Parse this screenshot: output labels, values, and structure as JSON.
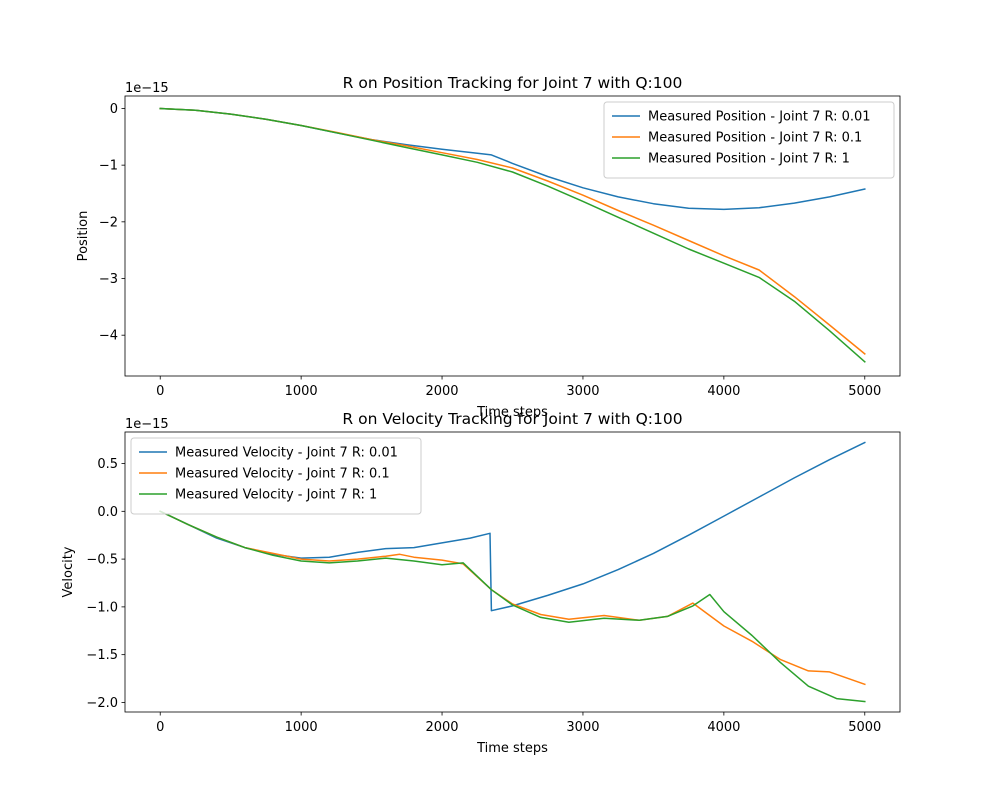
{
  "colors": {
    "blue": "#1f77b4",
    "orange": "#ff7f0e",
    "green": "#2ca02c"
  },
  "chart_data": [
    {
      "type": "line",
      "title": "R on Position Tracking for Joint 7 with Q:100",
      "xlabel": "Time steps",
      "ylabel": "Position",
      "offset_text": "1e−15",
      "scale": 1e-15,
      "xlim": [
        -250,
        5250
      ],
      "ylim": [
        -4.72,
        0.22
      ],
      "xticks": [
        0,
        1000,
        2000,
        3000,
        4000,
        5000
      ],
      "xtick_labels": [
        "0",
        "1000",
        "2000",
        "3000",
        "4000",
        "5000"
      ],
      "yticks": [
        0,
        -1,
        -2,
        -3,
        -4
      ],
      "ytick_labels": [
        "0",
        "−1",
        "−2",
        "−3",
        "−4"
      ],
      "legend": "top-right",
      "grid": false,
      "series": [
        {
          "name": "Measured Position - Joint 7 R: 0.01",
          "color": "#1f77b4",
          "x": [
            0,
            250,
            500,
            750,
            1000,
            1250,
            1500,
            1750,
            2000,
            2250,
            2350,
            2500,
            2750,
            3000,
            3250,
            3500,
            3750,
            4000,
            4250,
            4500,
            4750,
            5000
          ],
          "y": [
            0,
            -0.03,
            -0.1,
            -0.19,
            -0.3,
            -0.43,
            -0.55,
            -0.64,
            -0.72,
            -0.79,
            -0.82,
            -0.97,
            -1.2,
            -1.4,
            -1.56,
            -1.68,
            -1.76,
            -1.78,
            -1.75,
            -1.67,
            -1.56,
            -1.42
          ]
        },
        {
          "name": "Measured Position - Joint 7 R: 0.1",
          "color": "#ff7f0e",
          "x": [
            0,
            250,
            500,
            750,
            1000,
            1250,
            1500,
            1750,
            2000,
            2250,
            2500,
            2750,
            3000,
            3250,
            3500,
            3750,
            4000,
            4250,
            4500,
            4750,
            5000
          ],
          "y": [
            0,
            -0.03,
            -0.1,
            -0.19,
            -0.3,
            -0.42,
            -0.55,
            -0.66,
            -0.78,
            -0.9,
            -1.05,
            -1.28,
            -1.53,
            -1.8,
            -2.06,
            -2.33,
            -2.6,
            -2.85,
            -3.32,
            -3.82,
            -4.33
          ]
        },
        {
          "name": "Measured Position - Joint 7 R: 1",
          "color": "#2ca02c",
          "x": [
            0,
            250,
            500,
            750,
            1000,
            1250,
            1500,
            1750,
            2000,
            2250,
            2500,
            2750,
            3000,
            3250,
            3500,
            3750,
            4000,
            4250,
            4500,
            4750,
            5000
          ],
          "y": [
            0,
            -0.03,
            -0.1,
            -0.19,
            -0.3,
            -0.43,
            -0.56,
            -0.69,
            -0.82,
            -0.95,
            -1.12,
            -1.37,
            -1.64,
            -1.92,
            -2.2,
            -2.48,
            -2.73,
            -2.98,
            -3.4,
            -3.92,
            -4.47
          ]
        }
      ]
    },
    {
      "type": "line",
      "title": "R on Velocity Tracking for Joint 7 with Q:100",
      "xlabel": "Time steps",
      "ylabel": "Velocity",
      "offset_text": "1e−15",
      "scale": 1e-15,
      "xlim": [
        -250,
        5250
      ],
      "ylim": [
        -2.1,
        0.83
      ],
      "xticks": [
        0,
        1000,
        2000,
        3000,
        4000,
        5000
      ],
      "xtick_labels": [
        "0",
        "1000",
        "2000",
        "3000",
        "4000",
        "5000"
      ],
      "yticks": [
        0.5,
        0.0,
        -0.5,
        -1.0,
        -1.5,
        -2.0
      ],
      "ytick_labels": [
        "0.5",
        "0.0",
        "−0.5",
        "−1.0",
        "−1.5",
        "−2.0"
      ],
      "legend": "top-left",
      "grid": false,
      "series": [
        {
          "name": "Measured Velocity - Joint 7 R: 0.01",
          "color": "#1f77b4",
          "x": [
            0,
            200,
            400,
            600,
            800,
            1000,
            1200,
            1400,
            1600,
            1800,
            2000,
            2200,
            2340,
            2350,
            2500,
            2750,
            3000,
            3250,
            3500,
            3750,
            4000,
            4250,
            4500,
            4750,
            5000
          ],
          "y": [
            0,
            -0.14,
            -0.28,
            -0.38,
            -0.45,
            -0.49,
            -0.48,
            -0.43,
            -0.39,
            -0.38,
            -0.33,
            -0.28,
            -0.23,
            -1.04,
            -0.99,
            -0.88,
            -0.76,
            -0.61,
            -0.44,
            -0.25,
            -0.05,
            0.15,
            0.35,
            0.54,
            0.72
          ]
        },
        {
          "name": "Measured Velocity - Joint 7 R: 0.1",
          "color": "#ff7f0e",
          "x": [
            0,
            200,
            400,
            600,
            800,
            1000,
            1200,
            1400,
            1600,
            1700,
            1800,
            2000,
            2150,
            2350,
            2500,
            2700,
            2900,
            3150,
            3400,
            3600,
            3780,
            4000,
            4200,
            4400,
            4600,
            4750,
            5000
          ],
          "y": [
            0,
            -0.14,
            -0.27,
            -0.38,
            -0.44,
            -0.5,
            -0.52,
            -0.5,
            -0.47,
            -0.45,
            -0.48,
            -0.51,
            -0.55,
            -0.82,
            -0.97,
            -1.08,
            -1.13,
            -1.09,
            -1.14,
            -1.1,
            -0.96,
            -1.2,
            -1.36,
            -1.55,
            -1.67,
            -1.68,
            -1.81
          ]
        },
        {
          "name": "Measured Velocity - Joint 7 R: 1",
          "color": "#2ca02c",
          "x": [
            0,
            200,
            400,
            600,
            800,
            1000,
            1200,
            1400,
            1600,
            1800,
            2000,
            2150,
            2350,
            2500,
            2700,
            2900,
            3150,
            3400,
            3600,
            3780,
            3900,
            4000,
            4200,
            4400,
            4600,
            4800,
            5000
          ],
          "y": [
            0,
            -0.14,
            -0.27,
            -0.38,
            -0.46,
            -0.52,
            -0.54,
            -0.52,
            -0.49,
            -0.52,
            -0.56,
            -0.54,
            -0.82,
            -0.98,
            -1.11,
            -1.16,
            -1.12,
            -1.14,
            -1.1,
            -0.99,
            -0.87,
            -1.05,
            -1.3,
            -1.58,
            -1.83,
            -1.96,
            -1.99
          ]
        }
      ]
    }
  ]
}
